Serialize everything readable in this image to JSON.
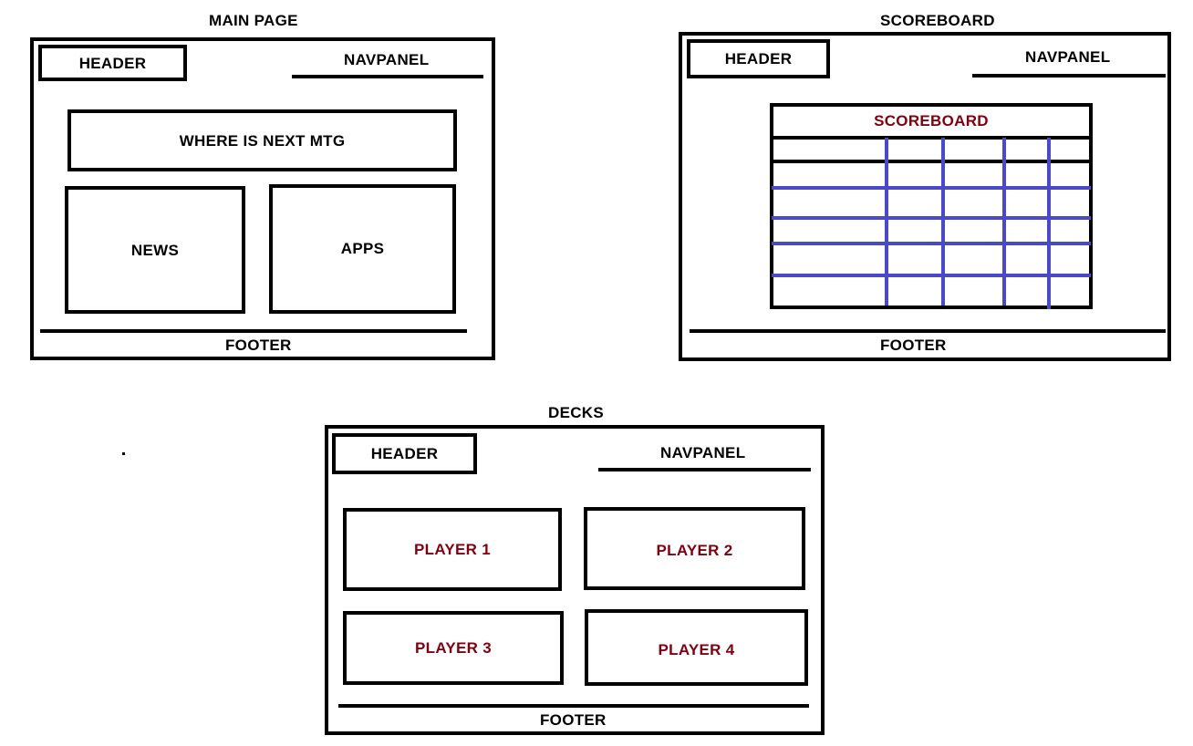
{
  "colors": {
    "ink": "#000000",
    "accent_text": "#800010",
    "grid": "#4a4ac8"
  },
  "main_page": {
    "title": "MAIN PAGE",
    "header": "HEADER",
    "navpanel": "NAVPANEL",
    "next_meeting": "WHERE IS NEXT MTG",
    "news": "NEWS",
    "apps": "APPS",
    "footer": "FOOTER"
  },
  "scoreboard_page": {
    "title": "SCOREBOARD",
    "header": "HEADER",
    "navpanel": "NAVPANEL",
    "table_title": "SCOREBOARD",
    "footer": "FOOTER"
  },
  "decks_page": {
    "title": "DECKS",
    "header": "HEADER",
    "navpanel": "NAVPANEL",
    "players": [
      "PLAYER 1",
      "PLAYER 2",
      "PLAYER 3",
      "PLAYER 4"
    ],
    "footer": "FOOTER"
  }
}
